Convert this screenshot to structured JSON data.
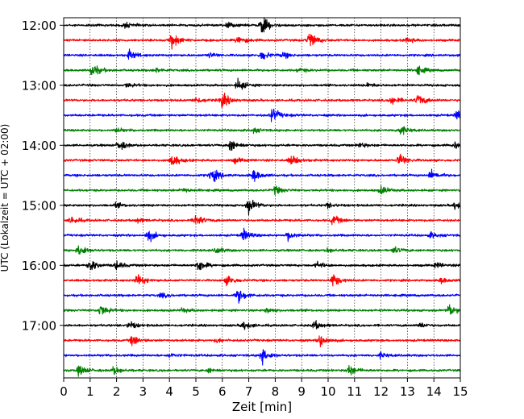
{
  "chart_data": {
    "type": "line",
    "title": "",
    "xlabel": "Zeit  [min]",
    "ylabel": "UTC (Lokalzeit = UTC + 02:00)",
    "xlim": [
      0,
      15
    ],
    "x_ticks": [
      0,
      1,
      2,
      3,
      4,
      5,
      6,
      7,
      8,
      9,
      10,
      11,
      12,
      13,
      14,
      15
    ],
    "x_tick_labels": [
      "0",
      "1",
      "2",
      "3",
      "4",
      "5",
      "6",
      "7",
      "8",
      "9",
      "10",
      "11",
      "12",
      "13",
      "14",
      "15"
    ],
    "y_tick_labels": [
      "12:00",
      "13:00",
      "14:00",
      "15:00",
      "16:00",
      "17:00"
    ],
    "vertical_grid": true,
    "line_colors": [
      "#000000",
      "#ff0000",
      "#0000ff",
      "#008000"
    ],
    "traces": [
      {
        "start": "12:00",
        "events": [
          [
            7.5,
            1.0
          ],
          [
            6.2,
            0.3
          ],
          [
            2.3,
            0.3
          ]
        ]
      },
      {
        "start": "12:15",
        "events": [
          [
            4.1,
            0.9
          ],
          [
            6.6,
            0.55
          ],
          [
            9.3,
            1.0
          ],
          [
            13.0,
            0.3
          ]
        ]
      },
      {
        "start": "12:30",
        "events": [
          [
            2.5,
            0.55
          ],
          [
            7.5,
            0.55
          ],
          [
            5.5,
            0.3
          ],
          [
            8.3,
            0.3
          ]
        ]
      },
      {
        "start": "12:45",
        "events": [
          [
            1.1,
            0.8
          ],
          [
            13.4,
            0.5
          ],
          [
            3.5,
            0.25
          ],
          [
            8.9,
            0.25
          ]
        ]
      },
      {
        "start": "13:00",
        "events": [
          [
            6.6,
            0.65
          ],
          [
            2.4,
            0.25
          ],
          [
            11.5,
            0.25
          ]
        ]
      },
      {
        "start": "13:15",
        "events": [
          [
            6.0,
            0.9
          ],
          [
            5.0,
            0.4
          ],
          [
            12.4,
            0.55
          ],
          [
            13.4,
            0.7
          ]
        ]
      },
      {
        "start": "13:30",
        "events": [
          [
            7.9,
            0.85
          ],
          [
            14.9,
            0.6
          ]
        ]
      },
      {
        "start": "13:45",
        "events": [
          [
            12.7,
            0.6
          ],
          [
            7.2,
            0.25
          ],
          [
            2.0,
            0.25
          ]
        ]
      },
      {
        "start": "14:00",
        "events": [
          [
            2.1,
            0.6
          ],
          [
            6.3,
            0.75
          ],
          [
            11.2,
            0.3
          ],
          [
            14.8,
            0.4
          ]
        ]
      },
      {
        "start": "14:15",
        "events": [
          [
            4.1,
            0.75
          ],
          [
            8.6,
            0.65
          ],
          [
            12.7,
            0.75
          ],
          [
            6.5,
            0.3
          ]
        ]
      },
      {
        "start": "14:30",
        "events": [
          [
            5.6,
            0.85
          ],
          [
            7.2,
            0.65
          ],
          [
            13.9,
            0.55
          ]
        ]
      },
      {
        "start": "14:45",
        "events": [
          [
            8.0,
            0.5
          ],
          [
            12.0,
            0.5
          ],
          [
            4.5,
            0.25
          ]
        ]
      },
      {
        "start": "15:00",
        "events": [
          [
            7.0,
            0.9
          ],
          [
            14.8,
            0.45
          ],
          [
            2.0,
            0.25
          ],
          [
            10.0,
            0.25
          ]
        ]
      },
      {
        "start": "15:15",
        "events": [
          [
            5.0,
            0.75
          ],
          [
            10.2,
            0.6
          ],
          [
            0.3,
            0.45
          ],
          [
            2.8,
            0.25
          ]
        ]
      },
      {
        "start": "15:30",
        "events": [
          [
            3.2,
            0.7
          ],
          [
            6.8,
            0.65
          ],
          [
            8.5,
            0.55
          ],
          [
            13.9,
            0.3
          ]
        ]
      },
      {
        "start": "15:45",
        "events": [
          [
            0.6,
            0.7
          ],
          [
            5.8,
            0.35
          ],
          [
            12.5,
            0.35
          ],
          [
            10.0,
            0.25
          ]
        ]
      },
      {
        "start": "16:00",
        "events": [
          [
            1.0,
            0.75
          ],
          [
            2.0,
            0.45
          ],
          [
            5.1,
            0.75
          ],
          [
            9.6,
            0.35
          ],
          [
            14.1,
            0.3
          ]
        ]
      },
      {
        "start": "16:15",
        "events": [
          [
            2.8,
            0.7
          ],
          [
            6.2,
            0.6
          ],
          [
            10.2,
            0.8
          ],
          [
            14.3,
            0.3
          ]
        ]
      },
      {
        "start": "16:30",
        "events": [
          [
            6.6,
            0.9
          ],
          [
            3.7,
            0.25
          ]
        ]
      },
      {
        "start": "16:45",
        "events": [
          [
            1.4,
            0.7
          ],
          [
            14.6,
            0.7
          ],
          [
            7.7,
            0.3
          ],
          [
            4.5,
            0.25
          ]
        ]
      },
      {
        "start": "17:00",
        "events": [
          [
            2.5,
            0.45
          ],
          [
            6.8,
            0.55
          ],
          [
            9.5,
            0.5
          ],
          [
            13.5,
            0.3
          ]
        ]
      },
      {
        "start": "17:15",
        "events": [
          [
            2.6,
            0.65
          ],
          [
            9.7,
            0.75
          ],
          [
            5.8,
            0.25
          ]
        ]
      },
      {
        "start": "17:30",
        "events": [
          [
            7.5,
            0.85
          ],
          [
            4.0,
            0.25
          ],
          [
            12.0,
            0.25
          ]
        ]
      },
      {
        "start": "17:45",
        "events": [
          [
            0.6,
            0.6
          ],
          [
            1.9,
            0.5
          ],
          [
            10.8,
            0.65
          ],
          [
            5.5,
            0.25
          ]
        ]
      }
    ]
  }
}
